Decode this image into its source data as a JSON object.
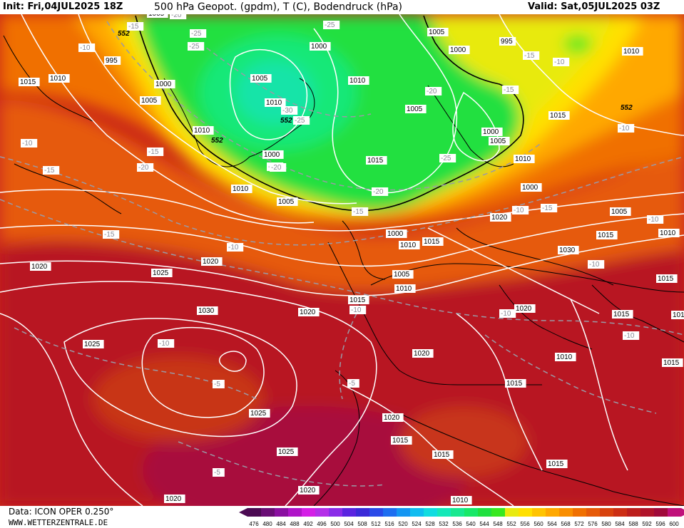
{
  "header": {
    "init": "Init: Fri,04JUL2025 18Z",
    "title": "500 hPa Geopot. (gpdm), T (C), Bodendruck (hPa)",
    "valid": "Valid: Sat,05JUL2025 03Z"
  },
  "footer": {
    "source": "Data: ICON OPER 0.250°",
    "url": "WWW.WETTERZENTRALE.DE"
  },
  "legend": {
    "values": [
      "476",
      "480",
      "484",
      "488",
      "492",
      "496",
      "500",
      "504",
      "508",
      "512",
      "516",
      "520",
      "524",
      "528",
      "532",
      "536",
      "540",
      "544",
      "548",
      "552",
      "556",
      "560",
      "564",
      "568",
      "572",
      "576",
      "580",
      "584",
      "588",
      "592",
      "596",
      "600"
    ],
    "colors": [
      "#4b0a52",
      "#6a0d75",
      "#8a0fa0",
      "#b014c8",
      "#d41ee6",
      "#b42ee8",
      "#8a2ce8",
      "#5a24e0",
      "#3a2ad8",
      "#2a4ae8",
      "#1e6ef0",
      "#1496f2",
      "#10bcf0",
      "#10dce0",
      "#14e8b8",
      "#18e890",
      "#18e868",
      "#20e040",
      "#38e820",
      "#e8ea10",
      "#ffe000",
      "#ffc400",
      "#ffa800",
      "#f98e00",
      "#f07000",
      "#e65a08",
      "#d8420e",
      "#cc2e14",
      "#bc1e1c",
      "#b0142a",
      "#a00a3a",
      "#c0107a"
    ]
  },
  "pressure_labels": [
    "1005",
    "552",
    "995",
    "1010",
    "1000",
    "1015",
    "1005",
    "1010",
    "552",
    "1000",
    "1010",
    "1005",
    "1000",
    "1005",
    "1010",
    "552",
    "1005",
    "1000",
    "995",
    "1010",
    "1010",
    "1005",
    "1000",
    "1005",
    "1010",
    "1015",
    "552",
    "1015",
    "1000",
    "1005",
    "1000",
    "1010",
    "1015",
    "1020",
    "1015",
    "1015",
    "1010",
    "1005",
    "1010",
    "1015",
    "1020",
    "1020",
    "1025",
    "1030",
    "1025",
    "1025",
    "1020",
    "1020",
    "1020",
    "1015",
    "1015",
    "1010",
    "1015",
    "1030",
    "1025",
    "1020",
    "1020",
    "1015",
    "1015",
    "1010",
    "1020",
    "1015",
    "1010"
  ],
  "temperature_labels": [
    "-20",
    "-25",
    "-15",
    "-10",
    "-25",
    "-25",
    "-15",
    "-20",
    "-15",
    "-10",
    "-15",
    "-10",
    "-25",
    "-30",
    "-25",
    "-20",
    "-20",
    "-25",
    "-15",
    "-20",
    "-15",
    "-10",
    "-15",
    "-10",
    "-10",
    "-15",
    "-10",
    "-10",
    "-10",
    "-10",
    "-10",
    "-5",
    "-5",
    "-10",
    "-5"
  ]
}
